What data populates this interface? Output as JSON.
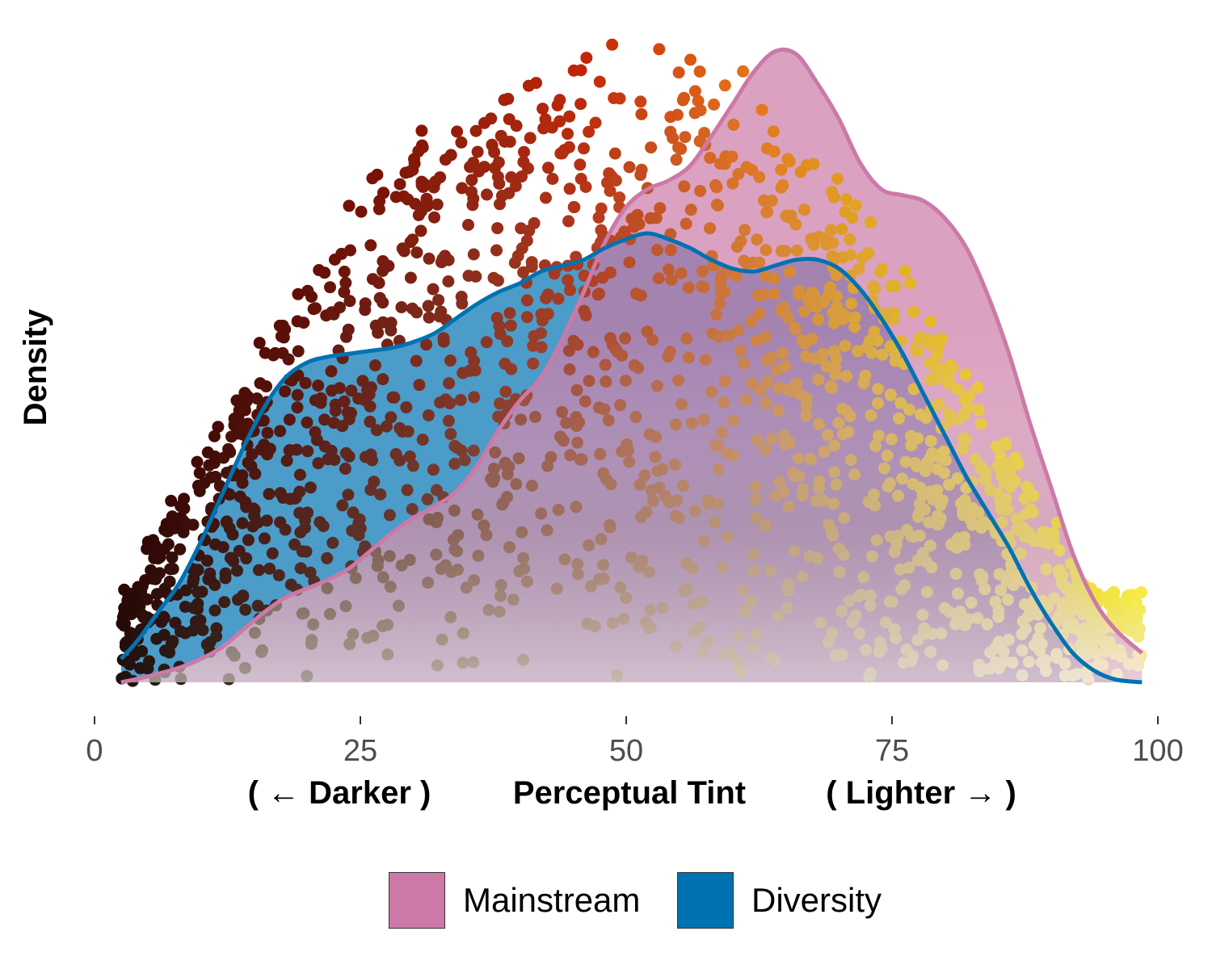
{
  "chart_data": {
    "type": "area",
    "title": "",
    "ylabel": "Density",
    "xlabel": {
      "left": "( ← Darker )",
      "center": "Perceptual Tint",
      "right": "( Lighter → )"
    },
    "xlim": [
      0,
      100
    ],
    "xticks": [
      "0",
      "25",
      "50",
      "75",
      "100"
    ],
    "ylim": [
      0,
      1.08
    ],
    "grid": false,
    "legend_position": "bottom",
    "series": [
      {
        "name": "Mainstream",
        "color": "#CC79A7",
        "x": [
          2.5,
          5,
          8,
          10,
          12,
          14,
          16,
          18,
          20,
          22,
          24,
          26,
          28,
          30,
          32,
          34,
          36,
          38,
          40,
          42,
          44,
          46,
          48,
          50,
          52,
          54,
          56,
          58,
          60,
          62,
          64,
          66,
          68,
          70,
          72,
          74,
          76,
          78,
          80,
          82,
          84,
          86,
          88,
          90,
          92,
          94,
          96,
          98.5
        ],
        "y": [
          0.0,
          0.01,
          0.025,
          0.04,
          0.06,
          0.09,
          0.12,
          0.145,
          0.16,
          0.175,
          0.195,
          0.225,
          0.255,
          0.28,
          0.3,
          0.325,
          0.37,
          0.43,
          0.48,
          0.52,
          0.585,
          0.665,
          0.75,
          0.81,
          0.84,
          0.855,
          0.88,
          0.93,
          0.985,
          1.04,
          1.075,
          1.07,
          1.02,
          0.96,
          0.885,
          0.84,
          0.83,
          0.82,
          0.79,
          0.74,
          0.66,
          0.56,
          0.44,
          0.33,
          0.22,
          0.14,
          0.09,
          0.05
        ]
      },
      {
        "name": "Diversity",
        "color": "#0072B2",
        "x": [
          2.5,
          4,
          6,
          8,
          10,
          12,
          14,
          16,
          18,
          20,
          22,
          24,
          26,
          28,
          30,
          32,
          34,
          36,
          38,
          40,
          42,
          44,
          46,
          48,
          50,
          52,
          54,
          56,
          58,
          60,
          62,
          64,
          66,
          68,
          70,
          72,
          74,
          76,
          78,
          80,
          82,
          84,
          86,
          88,
          90,
          92,
          94,
          96,
          98.5
        ],
        "y": [
          0.04,
          0.07,
          0.12,
          0.17,
          0.24,
          0.32,
          0.4,
          0.47,
          0.52,
          0.545,
          0.555,
          0.56,
          0.565,
          0.57,
          0.58,
          0.595,
          0.62,
          0.645,
          0.665,
          0.68,
          0.7,
          0.71,
          0.72,
          0.74,
          0.755,
          0.765,
          0.755,
          0.74,
          0.72,
          0.705,
          0.7,
          0.71,
          0.72,
          0.72,
          0.705,
          0.67,
          0.62,
          0.56,
          0.49,
          0.42,
          0.35,
          0.29,
          0.23,
          0.16,
          0.1,
          0.05,
          0.02,
          0.005,
          0.0
        ]
      }
    ]
  }
}
